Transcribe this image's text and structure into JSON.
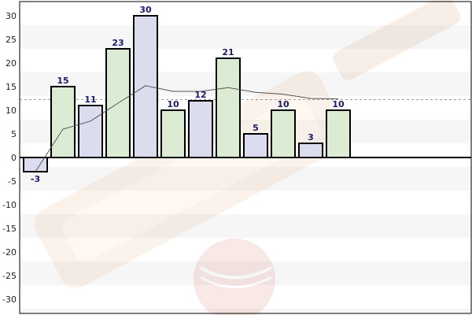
{
  "chart_data": {
    "type": "bar",
    "title": "",
    "xlabel": "",
    "ylabel": "",
    "ylim": [
      -33,
      33
    ],
    "yticks": [
      30,
      25,
      20,
      15,
      10,
      5,
      0,
      -5,
      -10,
      -15,
      -20,
      -25,
      -30
    ],
    "ytick_labels": [
      "30",
      "25",
      "20",
      "15",
      "10",
      "5",
      "0",
      "-5",
      "-10",
      "-15",
      "-20",
      "-25",
      "-30"
    ],
    "grid": "horizontal-bands",
    "legend": "none",
    "series": [
      {
        "type": "bar",
        "values": [
          -3,
          15,
          11,
          23,
          30,
          10,
          12,
          21,
          5,
          10,
          3,
          10
        ],
        "data_labels": [
          "-3",
          "15",
          "11",
          "23",
          "30",
          "10",
          "12",
          "21",
          "5",
          "10",
          "3",
          "10"
        ]
      },
      {
        "type": "line",
        "values": [
          -3,
          6,
          7.7,
          11.5,
          15.2,
          14,
          14,
          14.8,
          13.8,
          13.4,
          12.5,
          12.4
        ]
      }
    ],
    "reference_line": {
      "value": 12.25,
      "style": "dashed"
    },
    "colors": {
      "bar_fill_a": "#dcecd4",
      "bar_fill_b": "#dcdcef",
      "bar_stroke": "#000000",
      "label": "#1a1a66",
      "band_light": "#f6f6f6",
      "band_white": "#ffffff",
      "trend_line": "#555555",
      "reference_line": "#999999",
      "zero_axis": "#000000"
    }
  }
}
